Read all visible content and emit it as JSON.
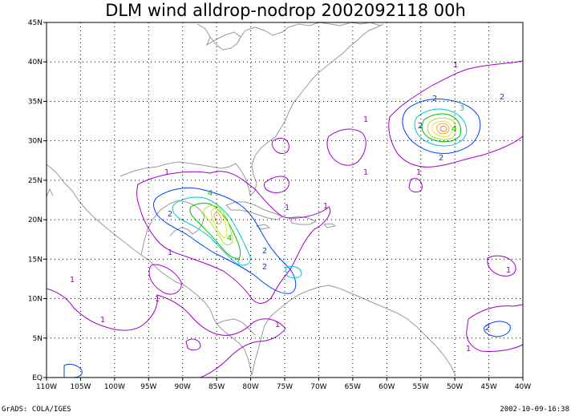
{
  "title": "DLM wind alldrop-nodrop 2002092118 00h",
  "footer": {
    "left": "GrADS: COLA/IGES",
    "right": "2002-10-09-16:38"
  },
  "axes": {
    "lon_labels": [
      "110W",
      "105W",
      "100W",
      "95W",
      "90W",
      "85W",
      "80W",
      "75W",
      "70W",
      "65W",
      "60W",
      "55W",
      "50W",
      "45W",
      "40W"
    ],
    "lat_labels": [
      "EQ",
      "5N",
      "10N",
      "15N",
      "20N",
      "25N",
      "30N",
      "35N",
      "40N",
      "45N"
    ],
    "lon_range": [
      -110,
      -40
    ],
    "lat_range": [
      0,
      45
    ],
    "grid": "dotted"
  },
  "contour_labels": {
    "one": "1",
    "two": "2",
    "three": "3",
    "four": "4"
  },
  "colors": {
    "level1": "#a000c8",
    "level2": "#0040ff",
    "level3": "#00c8c8",
    "level4": "#00c000",
    "level5": "#a0e632",
    "level6": "#e6dc32",
    "level7": "#e6af2d",
    "level8": "#f08228",
    "coast": "#999999",
    "grid": "#000000"
  }
}
